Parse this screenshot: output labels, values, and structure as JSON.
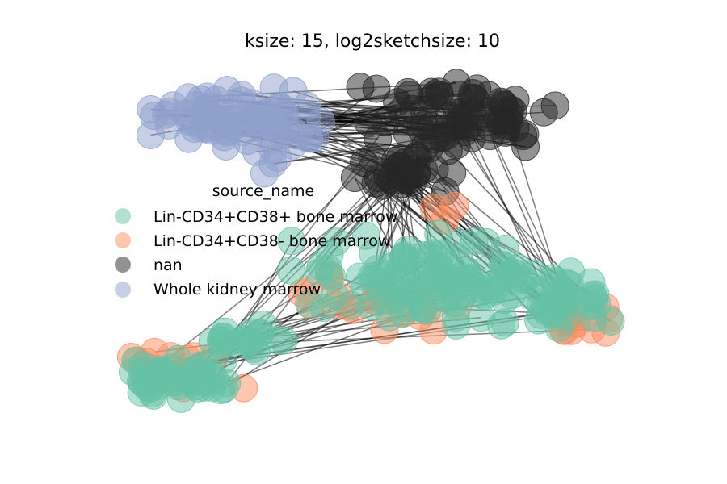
{
  "figure": {
    "title": "ksize: 15, log2sketchsize: 10"
  },
  "legend": {
    "title": "source_name",
    "items": [
      {
        "label": "Lin-CD34+CD38+ bone marrow",
        "color": "#66c2a5"
      },
      {
        "label": "Lin-CD34+CD38- bone marrow",
        "color": "#fc8d62"
      },
      {
        "label": "nan",
        "color": "#252525"
      },
      {
        "label": "Whole kidney marrow",
        "color": "#8da0cb"
      }
    ]
  },
  "colors": {
    "edge": "#000000",
    "teal": "#66c2a5",
    "orange": "#fc8d62",
    "dark": "#252525",
    "lavender": "#8da0cb"
  }
}
